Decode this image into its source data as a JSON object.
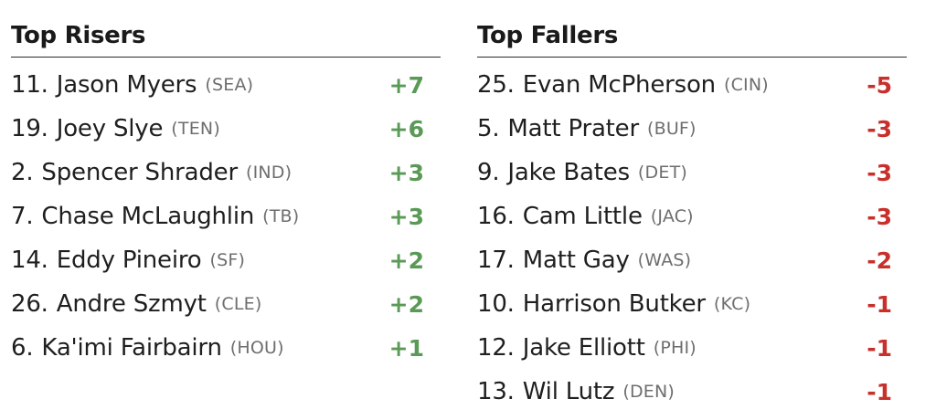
{
  "risers": {
    "title": "Top Risers",
    "color": "#5a9a56",
    "rows": [
      {
        "rank": "11.",
        "player": "Jason Myers",
        "team": "(SEA)",
        "change": "+7"
      },
      {
        "rank": "19.",
        "player": "Joey Slye",
        "team": "(TEN)",
        "change": "+6"
      },
      {
        "rank": "2.",
        "player": "Spencer Shrader",
        "team": "(IND)",
        "change": "+3"
      },
      {
        "rank": "7.",
        "player": "Chase McLaughlin",
        "team": "(TB)",
        "change": "+3"
      },
      {
        "rank": "14.",
        "player": "Eddy Pineiro",
        "team": "(SF)",
        "change": "+2"
      },
      {
        "rank": "26.",
        "player": "Andre Szmyt",
        "team": "(CLE)",
        "change": "+2"
      },
      {
        "rank": "6.",
        "player": "Ka'imi Fairbairn",
        "team": "(HOU)",
        "change": "+1"
      }
    ]
  },
  "fallers": {
    "title": "Top Fallers",
    "color": "#c8302b",
    "rows": [
      {
        "rank": "25.",
        "player": "Evan McPherson",
        "team": "(CIN)",
        "change": "-5"
      },
      {
        "rank": "5.",
        "player": "Matt Prater",
        "team": "(BUF)",
        "change": "-3"
      },
      {
        "rank": "9.",
        "player": "Jake Bates",
        "team": "(DET)",
        "change": "-3"
      },
      {
        "rank": "16.",
        "player": "Cam Little",
        "team": "(JAC)",
        "change": "-3"
      },
      {
        "rank": "17.",
        "player": "Matt Gay",
        "team": "(WAS)",
        "change": "-2"
      },
      {
        "rank": "10.",
        "player": "Harrison Butker",
        "team": "(KC)",
        "change": "-1"
      },
      {
        "rank": "12.",
        "player": "Jake Elliott",
        "team": "(PHI)",
        "change": "-1"
      },
      {
        "rank": "13.",
        "player": "Wil Lutz",
        "team": "(DEN)",
        "change": "-1"
      }
    ]
  }
}
